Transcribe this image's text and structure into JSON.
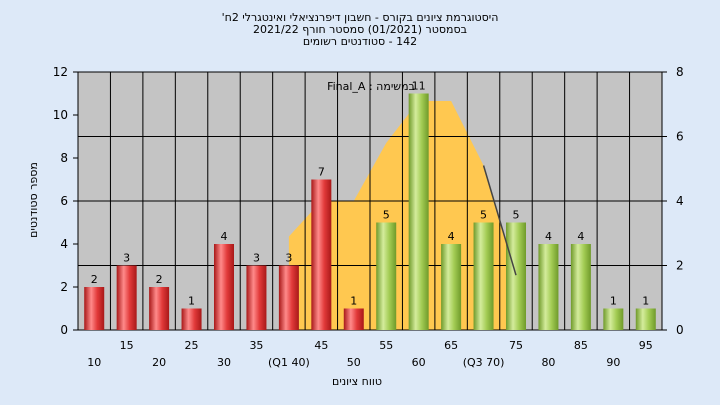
{
  "title_lines": [
    "היסטוגרמת ציונים בקורס - חשבון דיפרנציאלי ואינטגרלי 2ח'",
    "בסמסטר  (01/2021)  סמסטר חורף 2021/22",
    "142 - סטודנטים רשומים"
  ],
  "colors": {
    "background": "#dde9f8",
    "plot_area": "#c4c4c4",
    "below_bar": "#e23a3a",
    "above_bar": "#a3cc54",
    "area": "#ffc850",
    "curve": "#444444"
  },
  "chart_data": {
    "type": "bar",
    "categories": [
      "10",
      "15",
      "20",
      "25",
      "30",
      "35",
      "(Q1 40)",
      "45",
      "50",
      "55",
      "60",
      "65",
      "(Q3 70)",
      "75",
      "80",
      "85",
      "90",
      "95"
    ],
    "values": [
      2,
      3,
      2,
      1,
      4,
      3,
      3,
      7,
      1,
      5,
      11,
      4,
      5,
      5,
      4,
      4,
      1,
      1
    ],
    "bar_groups": [
      "below",
      "below",
      "below",
      "below",
      "below",
      "below",
      "below",
      "below",
      "below",
      "above",
      "above",
      "above",
      "above",
      "above",
      "above",
      "above",
      "above",
      "above"
    ],
    "ylabel": "מספר סטודנטים",
    "xlabel": "טווח ציונים",
    "ylim": [
      0,
      12
    ],
    "yticks": [
      0,
      2,
      4,
      6,
      8,
      10,
      12
    ],
    "y2lim": [
      0,
      8
    ],
    "y2ticks": [
      0,
      2,
      4,
      6,
      8
    ],
    "annotation": "במשימה : Final_A",
    "area_series": {
      "x": [
        40,
        45,
        50,
        55,
        60,
        65,
        70,
        75
      ],
      "y": [
        2.9,
        4.0,
        4.0,
        5.8,
        7.1,
        7.1,
        5.1,
        1.7
      ]
    },
    "grid": true
  }
}
